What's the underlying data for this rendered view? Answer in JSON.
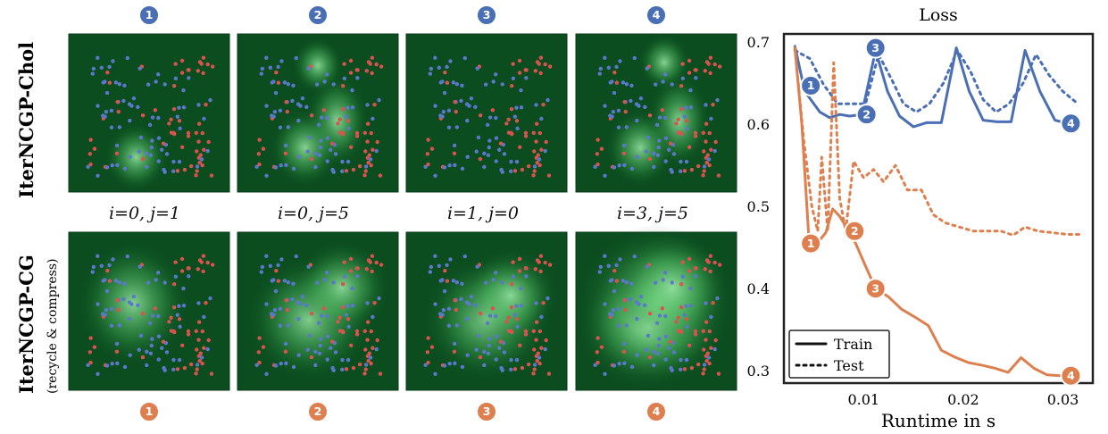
{
  "colors": {
    "chol": "#4a6fb5",
    "cg": "#dd7f4e",
    "panel_bg": "#0b4d1f",
    "point_blue": "#5a78cc",
    "point_red": "#d9534f"
  },
  "left": {
    "row_top_label": "IterNCGP-Chol",
    "row_bottom_label": "IterNCGP-CG",
    "row_bottom_sublabel": "(recycle & compress)",
    "badges": [
      "1",
      "2",
      "3",
      "4"
    ],
    "iteration_labels": [
      "i=0, j=1",
      "i=0, j=5",
      "i=1, j=0",
      "i=3, j=5"
    ]
  },
  "chart_data": {
    "type": "line",
    "title": "Loss",
    "xlabel": "Runtime in s",
    "ylabel": "",
    "xlim": [
      0.002,
      0.033
    ],
    "ylim": [
      0.285,
      0.71
    ],
    "xticks": [
      0.01,
      0.02,
      0.03
    ],
    "xtick_labels": [
      "0.01",
      "0.02",
      "0.03"
    ],
    "yticks": [
      0.3,
      0.4,
      0.5,
      0.6,
      0.7
    ],
    "ytick_labels": [
      "0.3",
      "0.4",
      "0.5",
      "0.6",
      "0.7"
    ],
    "grid": false,
    "legend": {
      "position": "lower-left",
      "entries": [
        {
          "label": "Train",
          "style": "solid"
        },
        {
          "label": "Test",
          "style": "dotted"
        }
      ]
    },
    "series": [
      {
        "group": "chol",
        "style": "solid",
        "x": [
          0.0031,
          0.0041,
          0.0056,
          0.0066,
          0.0076,
          0.0086,
          0.0098,
          0.0112,
          0.0124,
          0.0136,
          0.015,
          0.0163,
          0.0178,
          0.0193,
          0.0206,
          0.022,
          0.0234,
          0.0248,
          0.0262,
          0.0277,
          0.0292,
          0.0308
        ],
        "y": [
          0.695,
          0.64,
          0.615,
          0.608,
          0.612,
          0.61,
          0.612,
          0.69,
          0.64,
          0.61,
          0.597,
          0.602,
          0.602,
          0.693,
          0.64,
          0.605,
          0.603,
          0.603,
          0.69,
          0.64,
          0.605,
          0.6
        ]
      },
      {
        "group": "chol",
        "style": "dotted",
        "x": [
          0.0031,
          0.0046,
          0.006,
          0.0074,
          0.0088,
          0.0102,
          0.0115,
          0.0128,
          0.014,
          0.0153,
          0.0166,
          0.018,
          0.0194,
          0.0207,
          0.022,
          0.0233,
          0.0246,
          0.026,
          0.0273,
          0.0286,
          0.03,
          0.0315
        ],
        "y": [
          0.69,
          0.68,
          0.648,
          0.625,
          0.625,
          0.625,
          0.685,
          0.655,
          0.625,
          0.615,
          0.625,
          0.65,
          0.69,
          0.665,
          0.63,
          0.615,
          0.625,
          0.65,
          0.685,
          0.66,
          0.64,
          0.625
        ]
      },
      {
        "group": "cg",
        "style": "solid",
        "x": [
          0.0031,
          0.0038,
          0.0045,
          0.0054,
          0.0062,
          0.0069,
          0.0076,
          0.0085,
          0.0092,
          0.0101,
          0.0112,
          0.0125,
          0.0138,
          0.0152,
          0.0165,
          0.0178,
          0.0191,
          0.0205,
          0.0218,
          0.0232,
          0.0245,
          0.0258,
          0.0271,
          0.0284,
          0.0298,
          0.0312
        ],
        "y": [
          0.693,
          0.6,
          0.462,
          0.456,
          0.468,
          0.497,
          0.488,
          0.47,
          0.455,
          0.43,
          0.4,
          0.39,
          0.375,
          0.365,
          0.355,
          0.325,
          0.317,
          0.31,
          0.307,
          0.303,
          0.298,
          0.316,
          0.303,
          0.295,
          0.294,
          0.294
        ]
      },
      {
        "group": "cg",
        "style": "dotted",
        "x": [
          0.0031,
          0.004,
          0.0048,
          0.0054,
          0.0058,
          0.0064,
          0.007,
          0.0076,
          0.0082,
          0.009,
          0.01,
          0.011,
          0.012,
          0.0132,
          0.0144,
          0.0158,
          0.017,
          0.0182,
          0.0196,
          0.021,
          0.0224,
          0.0238,
          0.025,
          0.0262,
          0.0275,
          0.029,
          0.0305,
          0.0318
        ],
        "y": [
          0.693,
          0.58,
          0.5,
          0.47,
          0.56,
          0.47,
          0.675,
          0.51,
          0.47,
          0.555,
          0.535,
          0.545,
          0.53,
          0.55,
          0.52,
          0.52,
          0.49,
          0.48,
          0.475,
          0.47,
          0.47,
          0.47,
          0.465,
          0.475,
          0.47,
          0.468,
          0.466,
          0.466
        ]
      }
    ],
    "markers": [
      {
        "group": "chol",
        "label": "1",
        "x": 0.0047,
        "y": 0.647
      },
      {
        "group": "chol",
        "label": "2",
        "x": 0.0103,
        "y": 0.612
      },
      {
        "group": "chol",
        "label": "3",
        "x": 0.0112,
        "y": 0.693
      },
      {
        "group": "chol",
        "label": "4",
        "x": 0.0308,
        "y": 0.601
      },
      {
        "group": "cg",
        "label": "1",
        "x": 0.0047,
        "y": 0.455
      },
      {
        "group": "cg",
        "label": "2",
        "x": 0.0091,
        "y": 0.47
      },
      {
        "group": "cg",
        "label": "3",
        "x": 0.0112,
        "y": 0.4
      },
      {
        "group": "cg",
        "label": "4",
        "x": 0.0308,
        "y": 0.294
      }
    ]
  }
}
